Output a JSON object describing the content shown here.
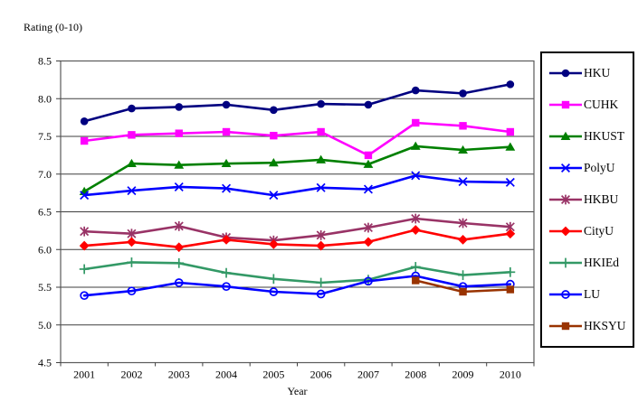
{
  "chart_data": {
    "type": "line",
    "title": "",
    "y_axis_label": "Rating (0-10)",
    "x_axis_label": "Year",
    "ylim": [
      4.5,
      8.5
    ],
    "y_tick_step": 0.5,
    "grid": "horizontal gridlines on",
    "legend_position": "right",
    "categories": [
      "2001",
      "2002",
      "2003",
      "2004",
      "2005",
      "2006",
      "2007",
      "2008",
      "2009",
      "2010"
    ],
    "series": [
      {
        "name": "HKU",
        "color": "#000080",
        "marker": "filled-circle",
        "values": [
          7.7,
          7.87,
          7.89,
          7.92,
          7.85,
          7.93,
          7.92,
          8.11,
          8.07,
          8.19
        ]
      },
      {
        "name": "CUHK",
        "color": "#FF00FF",
        "marker": "filled-square",
        "values": [
          7.44,
          7.52,
          7.54,
          7.56,
          7.51,
          7.56,
          7.25,
          7.68,
          7.64,
          7.56
        ]
      },
      {
        "name": "HKUST",
        "color": "#008000",
        "marker": "filled-triangle",
        "values": [
          6.77,
          7.14,
          7.12,
          7.14,
          7.15,
          7.19,
          7.13,
          7.37,
          7.32,
          7.36
        ]
      },
      {
        "name": "PolyU",
        "color": "#0000FF",
        "marker": "x",
        "values": [
          6.72,
          6.78,
          6.83,
          6.81,
          6.72,
          6.82,
          6.8,
          6.98,
          6.9,
          6.89
        ]
      },
      {
        "name": "HKBU",
        "color": "#993366",
        "marker": "asterisk",
        "values": [
          6.24,
          6.21,
          6.31,
          6.16,
          6.12,
          6.19,
          6.29,
          6.41,
          6.35,
          6.3
        ]
      },
      {
        "name": "CityU",
        "color": "#FF0000",
        "marker": "filled-diamond",
        "values": [
          6.05,
          6.1,
          6.03,
          6.13,
          6.07,
          6.05,
          6.1,
          6.26,
          6.13,
          6.21
        ]
      },
      {
        "name": "HKIEd",
        "color": "#339966",
        "marker": "plus",
        "values": [
          5.74,
          5.83,
          5.82,
          5.69,
          5.61,
          5.56,
          5.6,
          5.77,
          5.66,
          5.7
        ]
      },
      {
        "name": "LU",
        "color": "#0000FF",
        "marker": "open-circle",
        "values": [
          5.39,
          5.45,
          5.56,
          5.51,
          5.44,
          5.41,
          5.58,
          5.65,
          5.51,
          5.54
        ]
      },
      {
        "name": "HKSYU",
        "color": "#993300",
        "marker": "filled-square",
        "values": [
          null,
          null,
          null,
          null,
          null,
          null,
          null,
          5.59,
          5.44,
          5.47
        ]
      }
    ]
  }
}
